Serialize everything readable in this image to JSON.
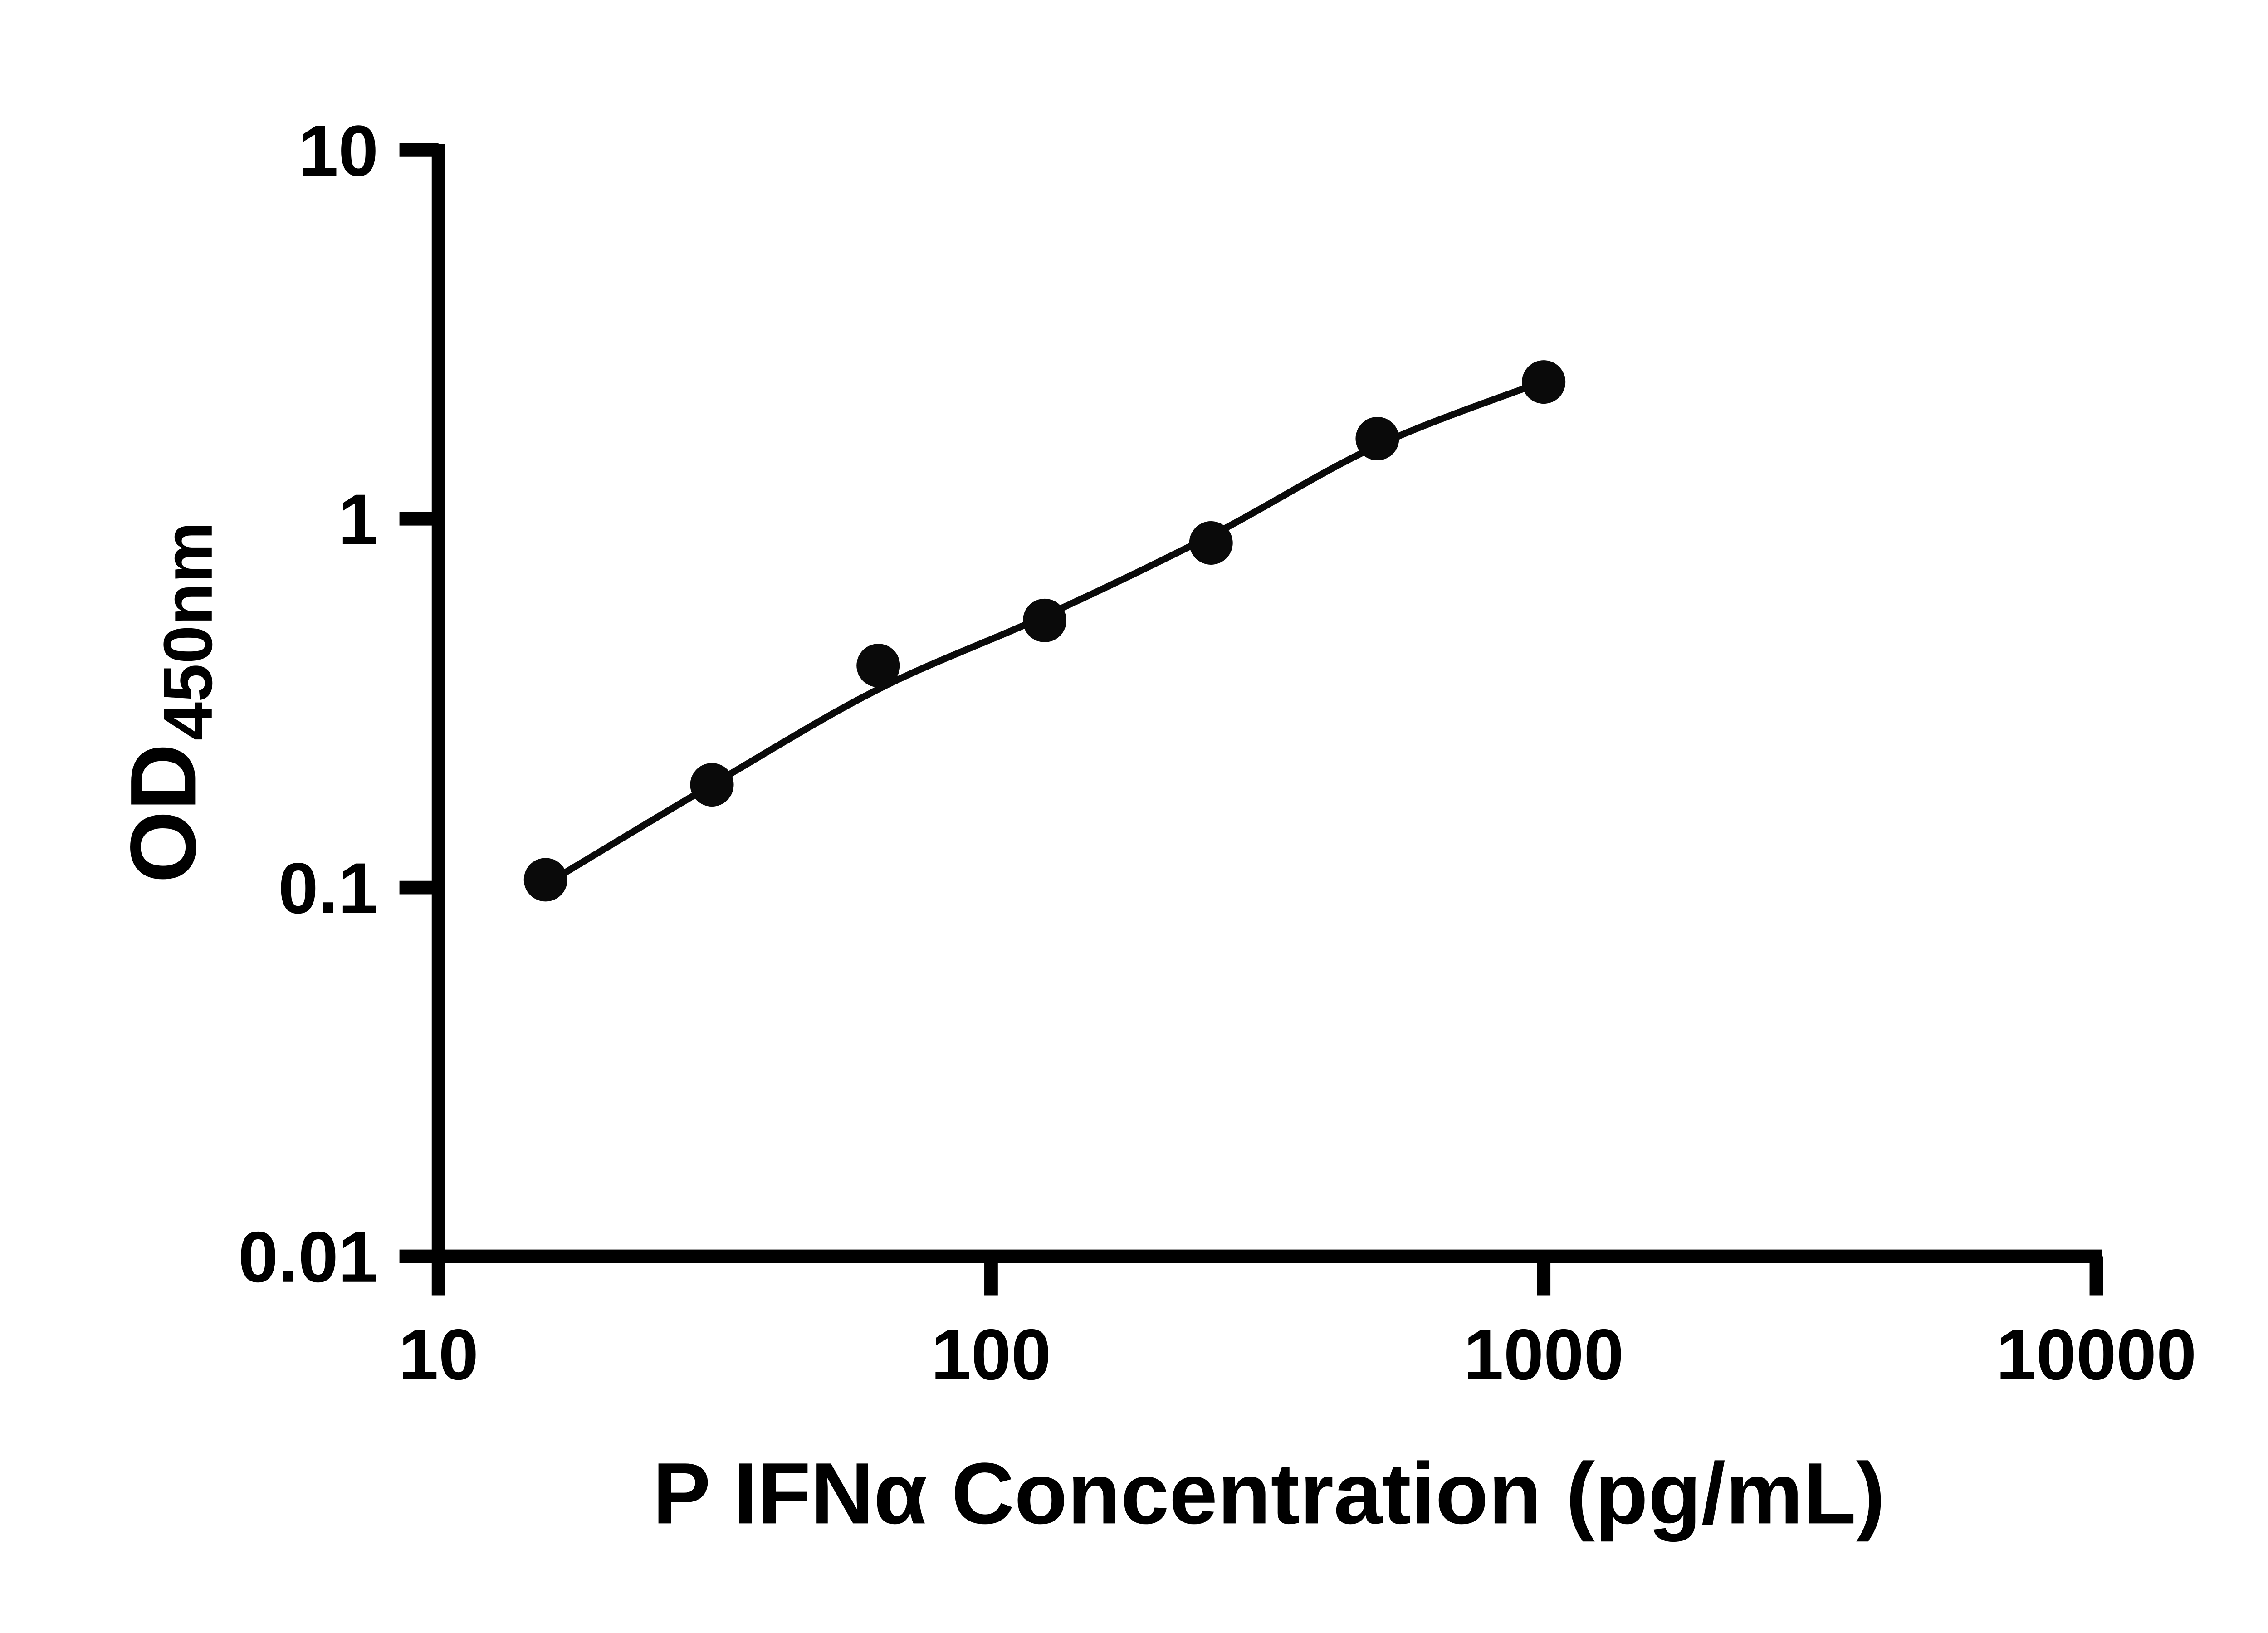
{
  "chart_data": {
    "type": "scatter",
    "title": "",
    "xlabel": "P IFNα Concentration (pg/mL)",
    "ylabel_main": "OD",
    "ylabel_sub": "450nm",
    "x_scale": "log",
    "y_scale": "log",
    "xlim": [
      10,
      10000
    ],
    "ylim": [
      0.01,
      10
    ],
    "x_ticks": [
      10,
      100,
      1000,
      10000
    ],
    "x_tick_labels": [
      "10",
      "100",
      "1000",
      "10000"
    ],
    "y_ticks": [
      0.01,
      0.1,
      1,
      10
    ],
    "y_tick_labels": [
      "0.01",
      "0.1",
      "1",
      "10"
    ],
    "grid": "off",
    "legend": "none",
    "points": [
      {
        "x": 15.625,
        "y": 0.105
      },
      {
        "x": 31.25,
        "y": 0.19
      },
      {
        "x": 62.5,
        "y": 0.4
      },
      {
        "x": 125,
        "y": 0.53
      },
      {
        "x": 250,
        "y": 0.86
      },
      {
        "x": 500,
        "y": 1.65
      },
      {
        "x": 1000,
        "y": 2.35
      }
    ],
    "fit_curve": [
      [
        15.625,
        0.102
      ],
      [
        31.25,
        0.19
      ],
      [
        62.5,
        0.345
      ],
      [
        125,
        0.545
      ],
      [
        250,
        0.9
      ],
      [
        500,
        1.58
      ],
      [
        1000,
        2.36
      ]
    ],
    "marker_color": "#0a0a0a",
    "line_color": "#0a0a0a",
    "axis_color": "#000000"
  }
}
